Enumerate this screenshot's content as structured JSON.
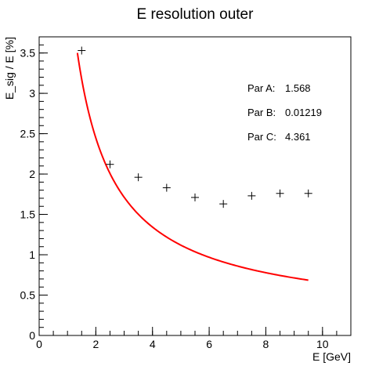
{
  "chart_data": {
    "type": "scatter",
    "title": "E resolution outer",
    "xlabel": "E [GeV]",
    "ylabel": "E_sig / E [%]",
    "xlim": [
      0,
      11
    ],
    "ylim": [
      0,
      3.7
    ],
    "x_ticks": [
      "0",
      "2",
      "4",
      "6",
      "8",
      "10"
    ],
    "y_ticks": [
      "0",
      "0.5",
      "1",
      "1.5",
      "2",
      "2.5",
      "3",
      "3.5"
    ],
    "grid": false,
    "series": [
      {
        "marker": "cross",
        "color": "#000000",
        "x": [
          1.5,
          2.5,
          3.5,
          4.5,
          5.5,
          6.5,
          7.5,
          8.5,
          9.5
        ],
        "y": [
          3.53,
          2.12,
          1.96,
          1.83,
          1.71,
          1.63,
          1.73,
          1.76,
          1.76
        ]
      }
    ],
    "fit": {
      "color": "#ff0000",
      "x_range": [
        1.35,
        9.5
      ],
      "params": [
        {
          "label": "Par A:",
          "value": "1.568"
        },
        {
          "label": "Par B:",
          "value": "0.01219"
        },
        {
          "label": "Par C:",
          "value": "4.361"
        }
      ]
    }
  }
}
